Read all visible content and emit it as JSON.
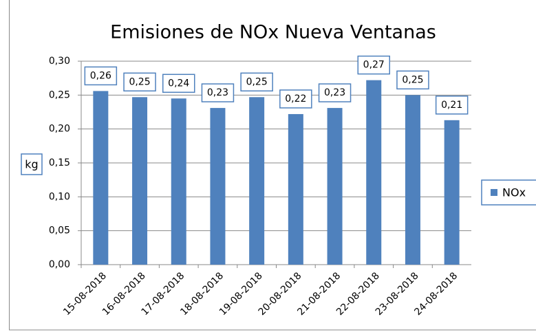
{
  "chart_data": {
    "type": "bar",
    "title": "Emisiones de NOx Nueva Ventanas",
    "y_label": "kg",
    "categories": [
      "15-08-2018",
      "16-08-2018",
      "17-08-2018",
      "18-08-2018",
      "19-08-2018",
      "20-08-2018",
      "21-08-2018",
      "22-08-2018",
      "23-08-2018",
      "24-08-2018"
    ],
    "series": [
      {
        "name": "NOx",
        "color": "#4f81bd",
        "values": [
          0.256,
          0.247,
          0.245,
          0.231,
          0.247,
          0.222,
          0.231,
          0.272,
          0.25,
          0.213
        ],
        "value_labels": [
          "0,26",
          "0,25",
          "0,24",
          "0,23",
          "0,25",
          "0,22",
          "0,23",
          "0,27",
          "0,25",
          "0,21"
        ]
      }
    ],
    "ylim": [
      0,
      0.3
    ],
    "yticks": [
      {
        "value": 0,
        "label": "0,00"
      },
      {
        "value": 0.05,
        "label": "0,05"
      },
      {
        "value": 0.1,
        "label": "0,10"
      },
      {
        "value": 0.15,
        "label": "0,15"
      },
      {
        "value": 0.2,
        "label": "0,20"
      },
      {
        "value": 0.25,
        "label": "0,25"
      },
      {
        "value": 0.3,
        "label": "0,30"
      }
    ],
    "grid": true,
    "legend": "right"
  }
}
